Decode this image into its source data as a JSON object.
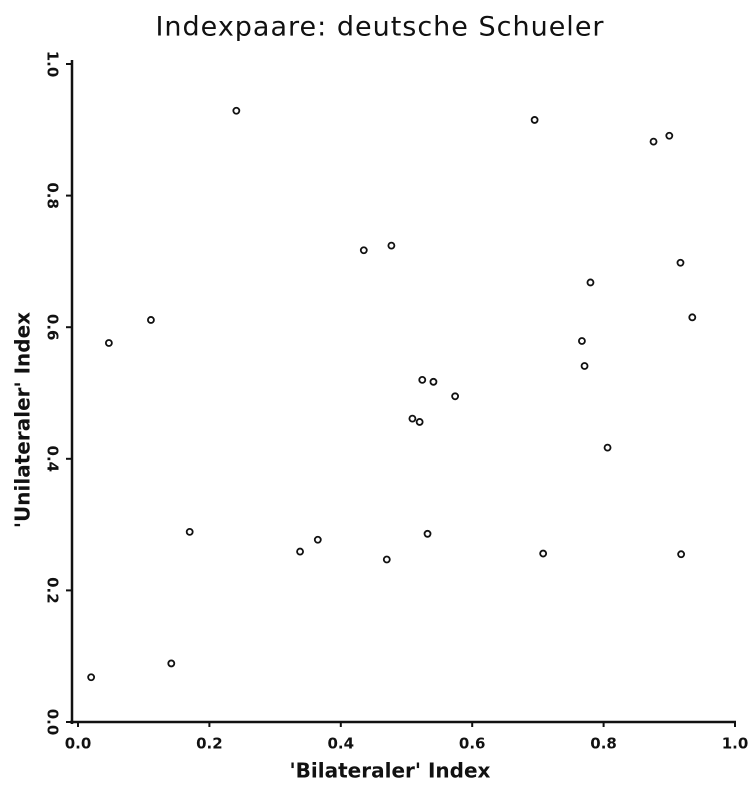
{
  "chart_data": {
    "type": "scatter",
    "title": "Indexpaare: deutsche Schueler",
    "xlabel": "'Bilateraler' Index",
    "ylabel": "'Unilateraler' Index",
    "x": [
      0.241,
      0.695,
      0.9,
      0.876,
      0.435,
      0.477,
      0.917,
      0.78,
      0.111,
      0.047,
      0.935,
      0.767,
      0.771,
      0.524,
      0.541,
      0.574,
      0.509,
      0.52,
      0.806,
      0.17,
      0.338,
      0.365,
      0.532,
      0.47,
      0.708,
      0.918,
      0.142,
      0.02
    ],
    "values": [
      0.929,
      0.915,
      0.891,
      0.882,
      0.717,
      0.724,
      0.698,
      0.668,
      0.611,
      0.576,
      0.615,
      0.579,
      0.541,
      0.52,
      0.517,
      0.495,
      0.461,
      0.456,
      0.417,
      0.289,
      0.259,
      0.277,
      0.286,
      0.247,
      0.256,
      0.255,
      0.089,
      0.068
    ],
    "color": "#111111",
    "xlim": [
      0,
      1
    ],
    "ylim": [
      0,
      1
    ],
    "xticks": [
      {
        "value": 0,
        "label": "0.0"
      },
      0.2,
      0.4,
      0.6,
      0.8,
      {
        "value": 1,
        "label": "1.0"
      }
    ],
    "yticks": [
      {
        "value": 0,
        "label": "0.0"
      },
      0.2,
      0.4,
      0.6,
      0.8,
      {
        "value": 1,
        "label": "1.0"
      }
    ]
  }
}
